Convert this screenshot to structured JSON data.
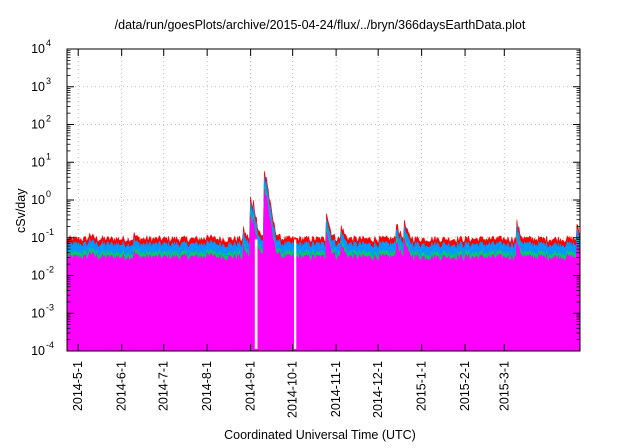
{
  "chart_data": {
    "type": "area",
    "title": "/data/run/goesPlots/archive/2015-04-24/flux/../bryn/366daysEarthData.plot",
    "xlabel": "Coordinated Universal Time (UTC)",
    "ylabel": "cSv/day",
    "yscale": "log",
    "ylim": [
      0.0001,
      10000
    ],
    "y_ticks": [
      {
        "base": "10",
        "exp": "-4"
      },
      {
        "base": "10",
        "exp": "-3"
      },
      {
        "base": "10",
        "exp": "-2"
      },
      {
        "base": "10",
        "exp": "-1"
      },
      {
        "base": "10",
        "exp": "0"
      },
      {
        "base": "10",
        "exp": "1"
      },
      {
        "base": "10",
        "exp": "2"
      },
      {
        "base": "10",
        "exp": "3"
      },
      {
        "base": "10",
        "exp": "4"
      }
    ],
    "xlim": [
      "2014-04-23",
      "2015-04-24"
    ],
    "x_ticks": [
      "2014-5-1",
      "2014-6-1",
      "2014-7-1",
      "2014-8-1",
      "2014-9-1",
      "2014-10-1",
      "2014-11-1",
      "2014-12-1",
      "2015-1-1",
      "2015-2-1",
      "2015-3-1"
    ],
    "x_tick_dates": [
      "2014-05-01",
      "2014-06-01",
      "2014-07-01",
      "2014-08-01",
      "2014-09-01",
      "2014-10-01",
      "2014-11-01",
      "2014-12-01",
      "2015-01-01",
      "2015-02-01",
      "2015-03-01"
    ],
    "grid": true,
    "legend": "none",
    "baseline_level": 0.09,
    "events": [
      {
        "date": "2014-05-09",
        "peak": 0.14
      },
      {
        "date": "2014-06-10",
        "peak": 0.12
      },
      {
        "date": "2014-08-01",
        "peak": 0.13
      },
      {
        "date": "2014-08-27",
        "peak": 0.16
      },
      {
        "date": "2014-09-01",
        "peak": 1.1
      },
      {
        "date": "2014-09-03",
        "peak": 0.9
      },
      {
        "date": "2014-09-11",
        "peak": 5.5
      },
      {
        "date": "2014-09-12",
        "peak": 4.5
      },
      {
        "date": "2014-10-25",
        "peak": 0.55
      },
      {
        "date": "2014-11-05",
        "peak": 0.2
      },
      {
        "date": "2014-12-14",
        "peak": 0.28
      },
      {
        "date": "2014-12-20",
        "peak": 0.24
      },
      {
        "date": "2015-03-10",
        "peak": 0.25
      },
      {
        "date": "2015-04-22",
        "peak": 0.2
      }
    ],
    "series": [
      {
        "color": "#ff0000"
      },
      {
        "color": "#0099ff"
      },
      {
        "color": "#00cc66"
      },
      {
        "color": "#ff00ff"
      }
    ]
  }
}
